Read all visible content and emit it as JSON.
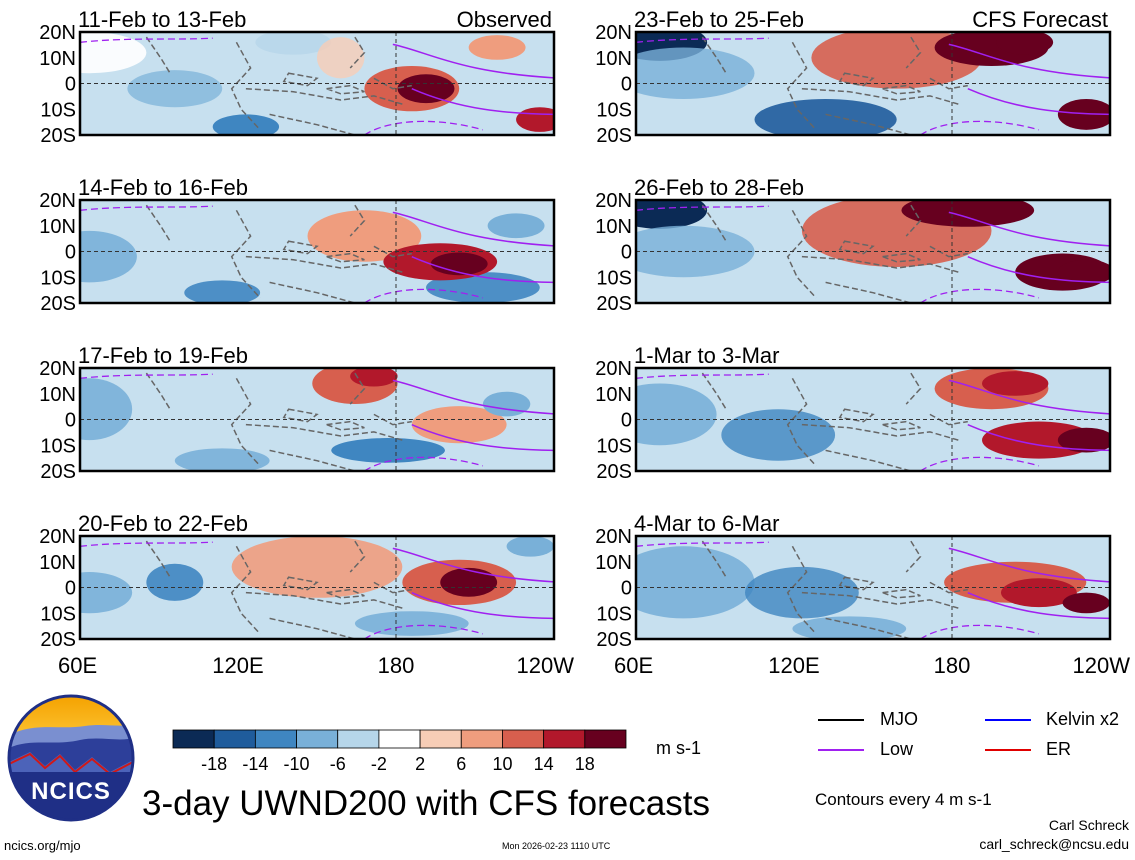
{
  "chart_data": {
    "type": "heatmap",
    "title": "3-day UWND200 with CFS forecasts",
    "units": "m s-1",
    "contour_note": "Contours every 4 m s-1",
    "x_ticks": [
      "60E",
      "120E",
      "180",
      "120W"
    ],
    "y_ticks": [
      "20N",
      "10N",
      "0",
      "10S",
      "20S"
    ],
    "xlim": [
      60,
      240
    ],
    "ylim": [
      -20,
      20
    ],
    "colorbar": {
      "ticks": [
        "-18",
        "-14",
        "-10",
        "-6",
        "-2",
        "2",
        "6",
        "10",
        "14",
        "18"
      ],
      "colors": [
        "#0b2a55",
        "#1f5c9c",
        "#3f86c1",
        "#79b0d8",
        "#b6d6ea",
        "#ffffff",
        "#f7cdb6",
        "#ef9d7e",
        "#d75f4e",
        "#b2182b",
        "#67001f"
      ]
    },
    "panels": [
      {
        "period": "11-Feb to 13-Feb",
        "label": "Observed",
        "column": "left"
      },
      {
        "period": "14-Feb to 16-Feb",
        "label": "",
        "column": "left"
      },
      {
        "period": "17-Feb to 19-Feb",
        "label": "",
        "column": "left"
      },
      {
        "period": "20-Feb to 22-Feb",
        "label": "",
        "column": "left"
      },
      {
        "period": "23-Feb to 25-Feb",
        "label": "CFS Forecast",
        "column": "right"
      },
      {
        "period": "26-Feb to 28-Feb",
        "label": "",
        "column": "right"
      },
      {
        "period": "1-Mar to 3-Mar",
        "label": "",
        "column": "right"
      },
      {
        "period": "4-Mar to 6-Mar",
        "label": "",
        "column": "right"
      }
    ],
    "legend": [
      {
        "name": "MJO",
        "color": "#000000"
      },
      {
        "name": "Kelvin x2",
        "color": "#0000ff"
      },
      {
        "name": "Low",
        "color": "#a020f0"
      },
      {
        "name": "ER",
        "color": "#e00000"
      }
    ]
  },
  "logo_text": "NCICS",
  "footer": {
    "site": "ncics.org/mjo",
    "timestamp": "Mon 2026-02-23 1110 UTC",
    "author": "Carl Schreck",
    "email": "carl_schreck@ncsu.edu"
  }
}
